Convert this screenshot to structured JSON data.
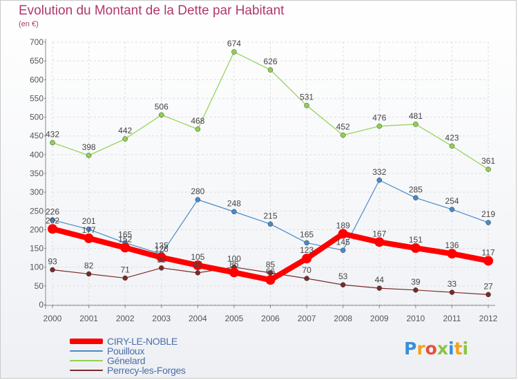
{
  "chart_data": {
    "type": "line",
    "title": "Evolution du Montant de la Dette par Habitant",
    "subtitle": "(en €)",
    "categories": [
      "2000",
      "2001",
      "2002",
      "2003",
      "2004",
      "2005",
      "2006",
      "2007",
      "2008",
      "2009",
      "2010",
      "2011",
      "2012"
    ],
    "ylim": [
      0,
      700
    ],
    "yticks": [
      0,
      50,
      100,
      150,
      200,
      250,
      300,
      350,
      400,
      450,
      500,
      550,
      600,
      650,
      700
    ],
    "grid": true,
    "legend_position": "bottom-left",
    "series": [
      {
        "name": "CIRY-LE-NOBLE",
        "color": "#ff0000",
        "values": [
          202,
          177,
          152,
          126,
          105,
          86,
          66,
          123,
          189,
          167,
          151,
          136,
          117
        ]
      },
      {
        "name": "Pouilloux",
        "color": "#4a8ac6",
        "values": [
          226,
          201,
          165,
          135,
          280,
          248,
          215,
          165,
          145,
          332,
          285,
          254,
          219
        ]
      },
      {
        "name": "Génelard",
        "color": "#8fd14f",
        "values": [
          432,
          398,
          442,
          506,
          468,
          674,
          626,
          531,
          452,
          476,
          481,
          423,
          361
        ]
      },
      {
        "name": "Perrecy-les-Forges",
        "color": "#7a2a2a",
        "values": [
          93,
          82,
          71,
          98,
          85,
          100,
          85,
          70,
          53,
          44,
          39,
          33,
          27
        ]
      }
    ]
  },
  "logo": {
    "letters": [
      "P",
      "r",
      "o",
      "x",
      "i",
      "t",
      "i"
    ]
  }
}
